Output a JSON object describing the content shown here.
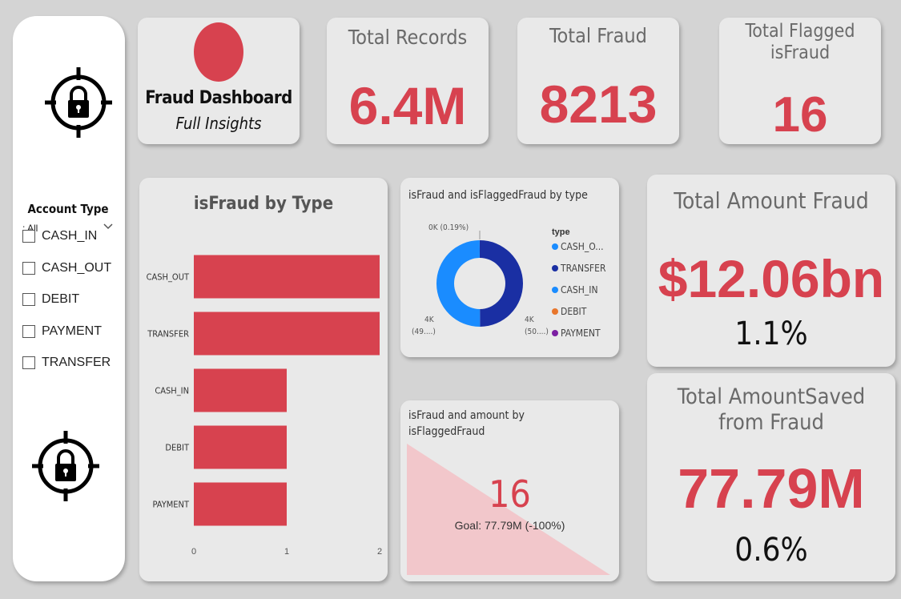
{
  "sidebar": {
    "top_icon": "target-lock-icon",
    "bottom_icon": "target-lock-icon",
    "slicer": {
      "title": "Account Type",
      "selected": ": All",
      "items": [
        {
          "label": "CASH_IN"
        },
        {
          "label": "CASH_OUT"
        },
        {
          "label": "DEBIT"
        },
        {
          "label": "PAYMENT"
        },
        {
          "label": "TRANSFER"
        }
      ]
    }
  },
  "logo_card": {
    "title": "Fraud Dashboard",
    "subtitle": "Full Insights",
    "circle_color": "#d7424f"
  },
  "kpis": {
    "total_records": {
      "title": "Total Records",
      "value": "6.4M"
    },
    "total_fraud": {
      "title": "Total Fraud",
      "value": "8213"
    },
    "total_flagged": {
      "title": "Total Flagged isFraud",
      "value": "16"
    },
    "total_amount_fraud": {
      "title": "Total Amount Fraud",
      "value": "$12.06bn",
      "sub": "1.1%"
    },
    "total_amount_saved": {
      "title": "Total AmountSaved from Fraud",
      "value": "77.79M",
      "sub": "0.6%"
    }
  },
  "colors": {
    "accent": "#d7424f",
    "donut_dark": "#1a2fa3",
    "donut_light": "#1a8cff",
    "gauge_fill": "#f2c7cb"
  },
  "chart_data": [
    {
      "type": "bar",
      "orientation": "horizontal",
      "title": "isFraud by Type",
      "categories": [
        "CASH_OUT",
        "TRANSFER",
        "CASH_IN",
        "DEBIT",
        "PAYMENT"
      ],
      "values": [
        2,
        2,
        1,
        1,
        1
      ],
      "xlim": [
        0,
        2
      ],
      "xticks": [
        "0",
        "1",
        "2"
      ]
    },
    {
      "type": "pie",
      "title": "isFraud and isFlaggedFraud by type",
      "legend_title": "type",
      "legend": [
        {
          "label": "CASH_O...",
          "color": "#1a8cff"
        },
        {
          "label": "TRANSFER",
          "color": "#1a2fa3"
        },
        {
          "label": "CASH_IN",
          "color": "#1a8cff"
        },
        {
          "label": "DEBIT",
          "color": "#e8762c"
        },
        {
          "label": "PAYMENT",
          "color": "#7b1fa2"
        }
      ],
      "slices": [
        {
          "value": 49.9,
          "color": "#1a2fa3"
        },
        {
          "value": 49.9,
          "color": "#1a8cff"
        },
        {
          "value": 0.19,
          "color": "#1a8cff"
        }
      ],
      "labels": {
        "top": "0K (0.19%)",
        "left_value": "4K",
        "left_pct": "(49....)",
        "right_value": "4K",
        "right_pct": "(50....)"
      }
    }
  ],
  "gauge": {
    "title": "isFraud and amount by isFlaggedFraud",
    "value": "16",
    "goal": "Goal: 77.79M (-100%)",
    "fill_fraction": 0.0
  }
}
